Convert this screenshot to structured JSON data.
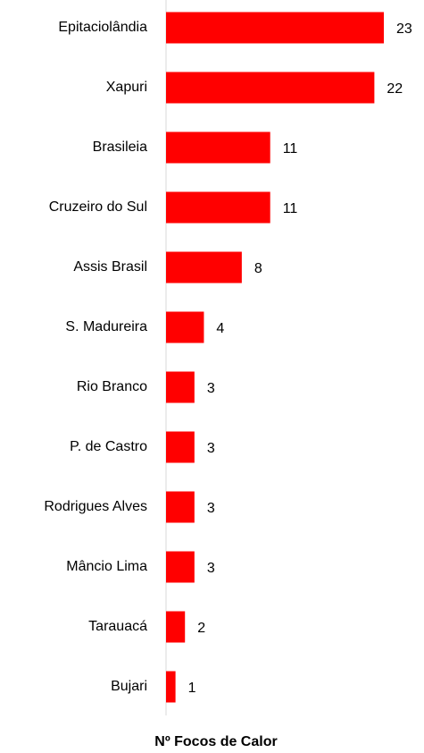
{
  "chart_data": {
    "type": "bar",
    "orientation": "horizontal",
    "x_label": "Nº Focos de Calor",
    "categories": [
      "Epitaciolândia",
      "Xapuri",
      "Brasileia",
      "Cruzeiro do Sul",
      "Assis Brasil",
      "S. Madureira",
      "Rio Branco",
      "P. de Castro",
      "Rodrigues Alves",
      "Mâncio Lima",
      "Tarauacá",
      "Bujari"
    ],
    "values": [
      23,
      22,
      11,
      11,
      8,
      4,
      3,
      3,
      3,
      3,
      2,
      1
    ],
    "color": "#ff0000"
  }
}
